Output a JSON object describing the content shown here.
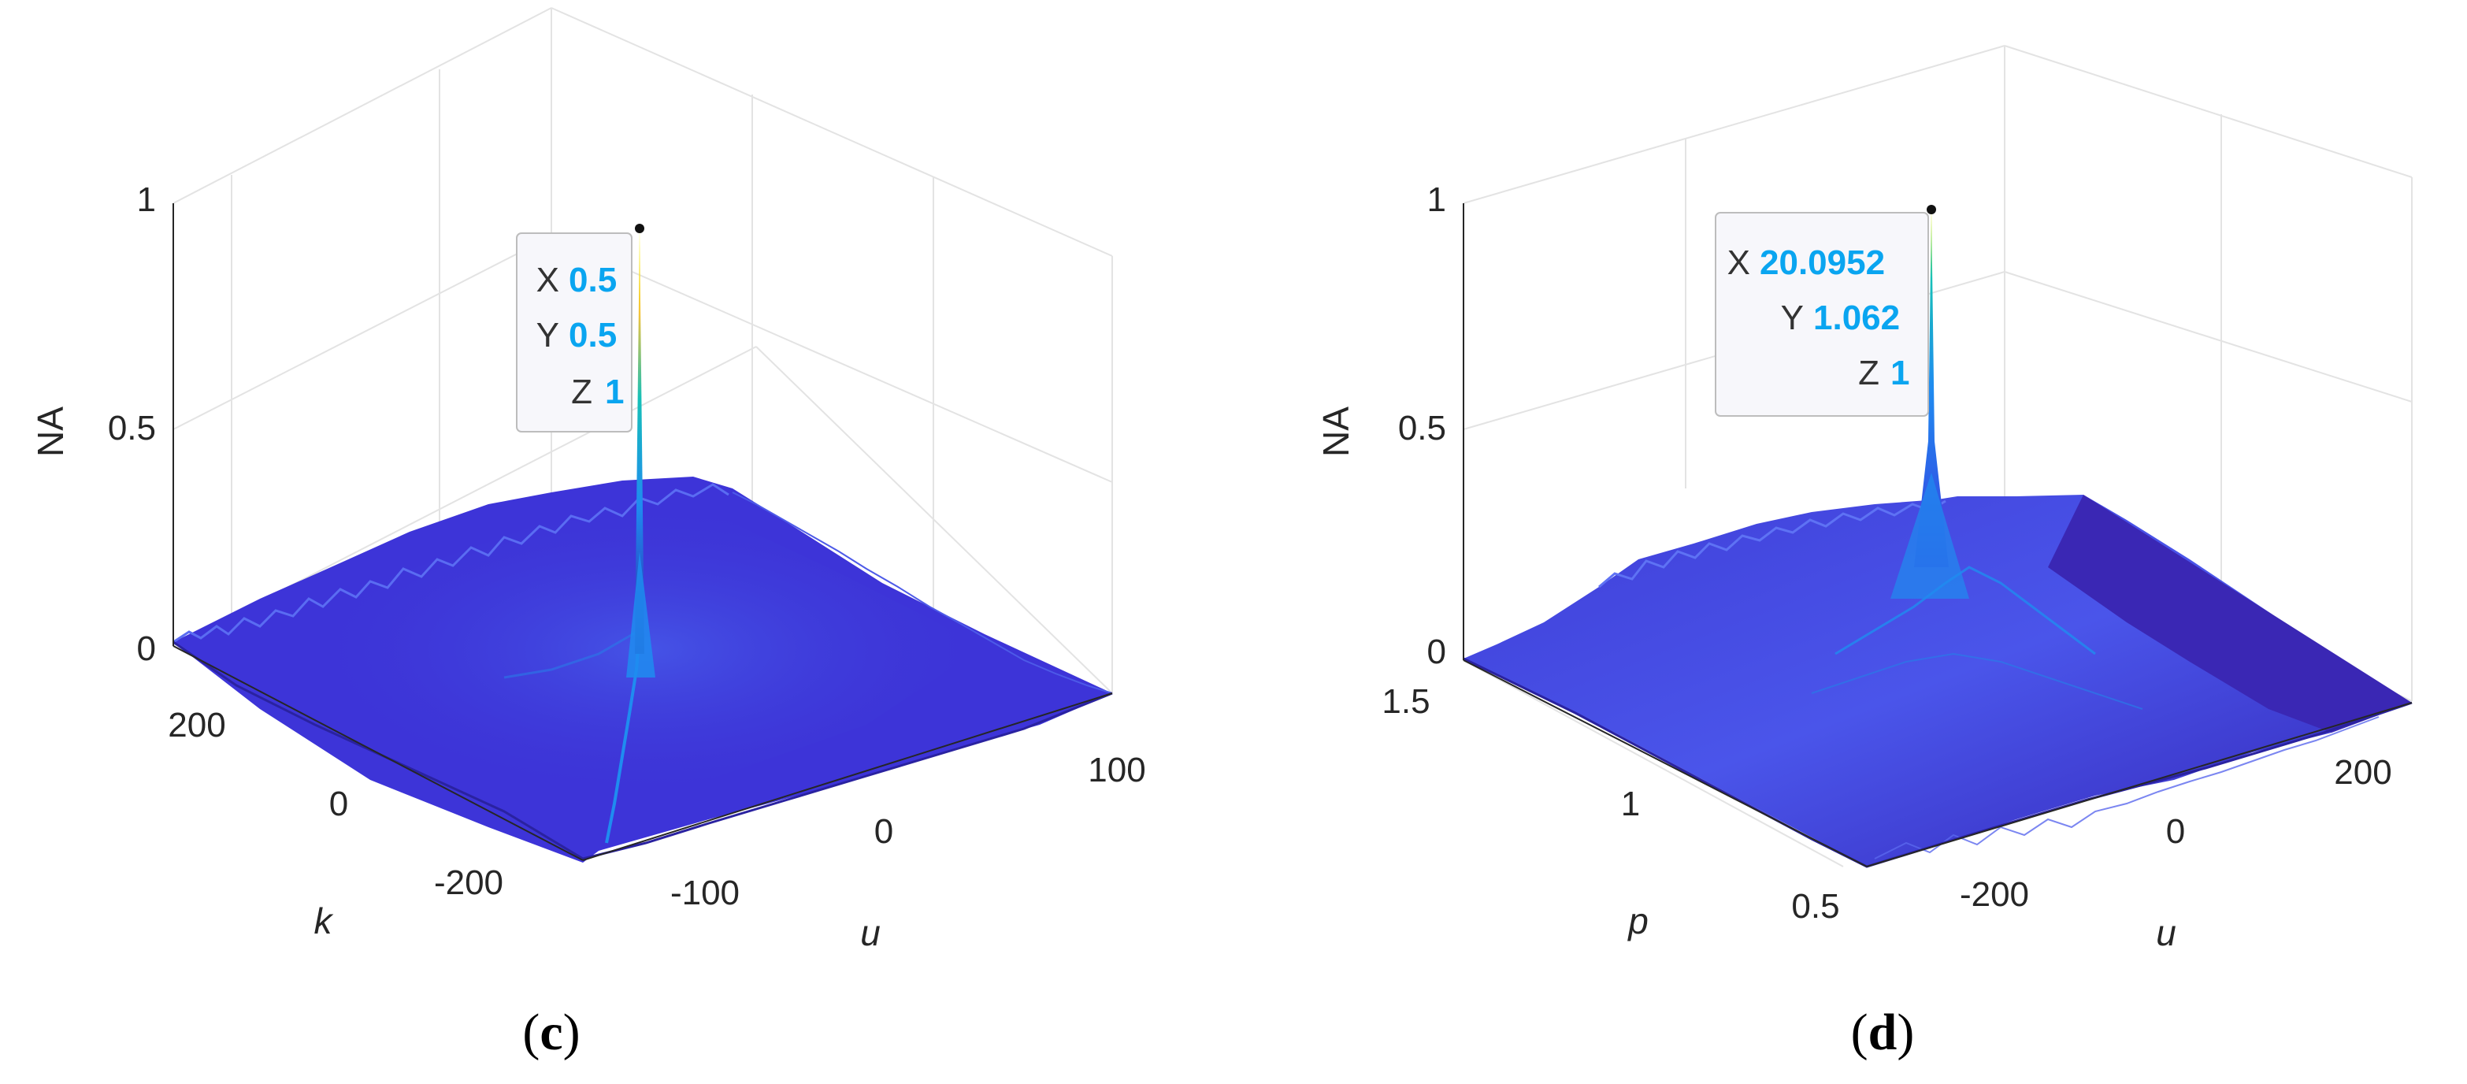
{
  "chart_data": [
    {
      "type": "surface",
      "panel_label": "c",
      "zlabel": "NA",
      "xlabel": "u",
      "ylabel": "k",
      "z_ticks": [
        "0",
        "0.5",
        "1"
      ],
      "x_ticks": [
        "-100",
        "0",
        "100"
      ],
      "y_ticks": [
        "200",
        "0",
        "-200"
      ],
      "zlim": [
        0,
        1
      ],
      "grid": true,
      "colormap": [
        "#2b22a8",
        "#3a3ae0",
        "#1f8cf0",
        "#16c0b8",
        "#8ac83a",
        "#f5c43a",
        "#f9fa14"
      ],
      "peak": {
        "x": 0.5,
        "y": 0.5,
        "z": 1
      },
      "datatip": {
        "X": "0.5",
        "Y": "0.5",
        "Z": "1"
      }
    },
    {
      "type": "surface",
      "panel_label": "d",
      "zlabel": "NA",
      "xlabel": "u",
      "ylabel": "p",
      "z_ticks": [
        "0",
        "0.5",
        "1"
      ],
      "x_ticks": [
        "-200",
        "0",
        "200"
      ],
      "y_ticks": [
        "1.5",
        "1",
        "0.5"
      ],
      "zlim": [
        0,
        1
      ],
      "grid": true,
      "colormap": [
        "#2b22a8",
        "#3a3ae0",
        "#1f8cf0",
        "#16c0b8",
        "#8ac83a",
        "#f5c43a",
        "#f9fa14"
      ],
      "peak": {
        "x": 20.0952,
        "y": 1.062,
        "z": 1
      },
      "datatip": {
        "X": "20.0952",
        "Y": "1.062",
        "Z": "1"
      }
    }
  ]
}
